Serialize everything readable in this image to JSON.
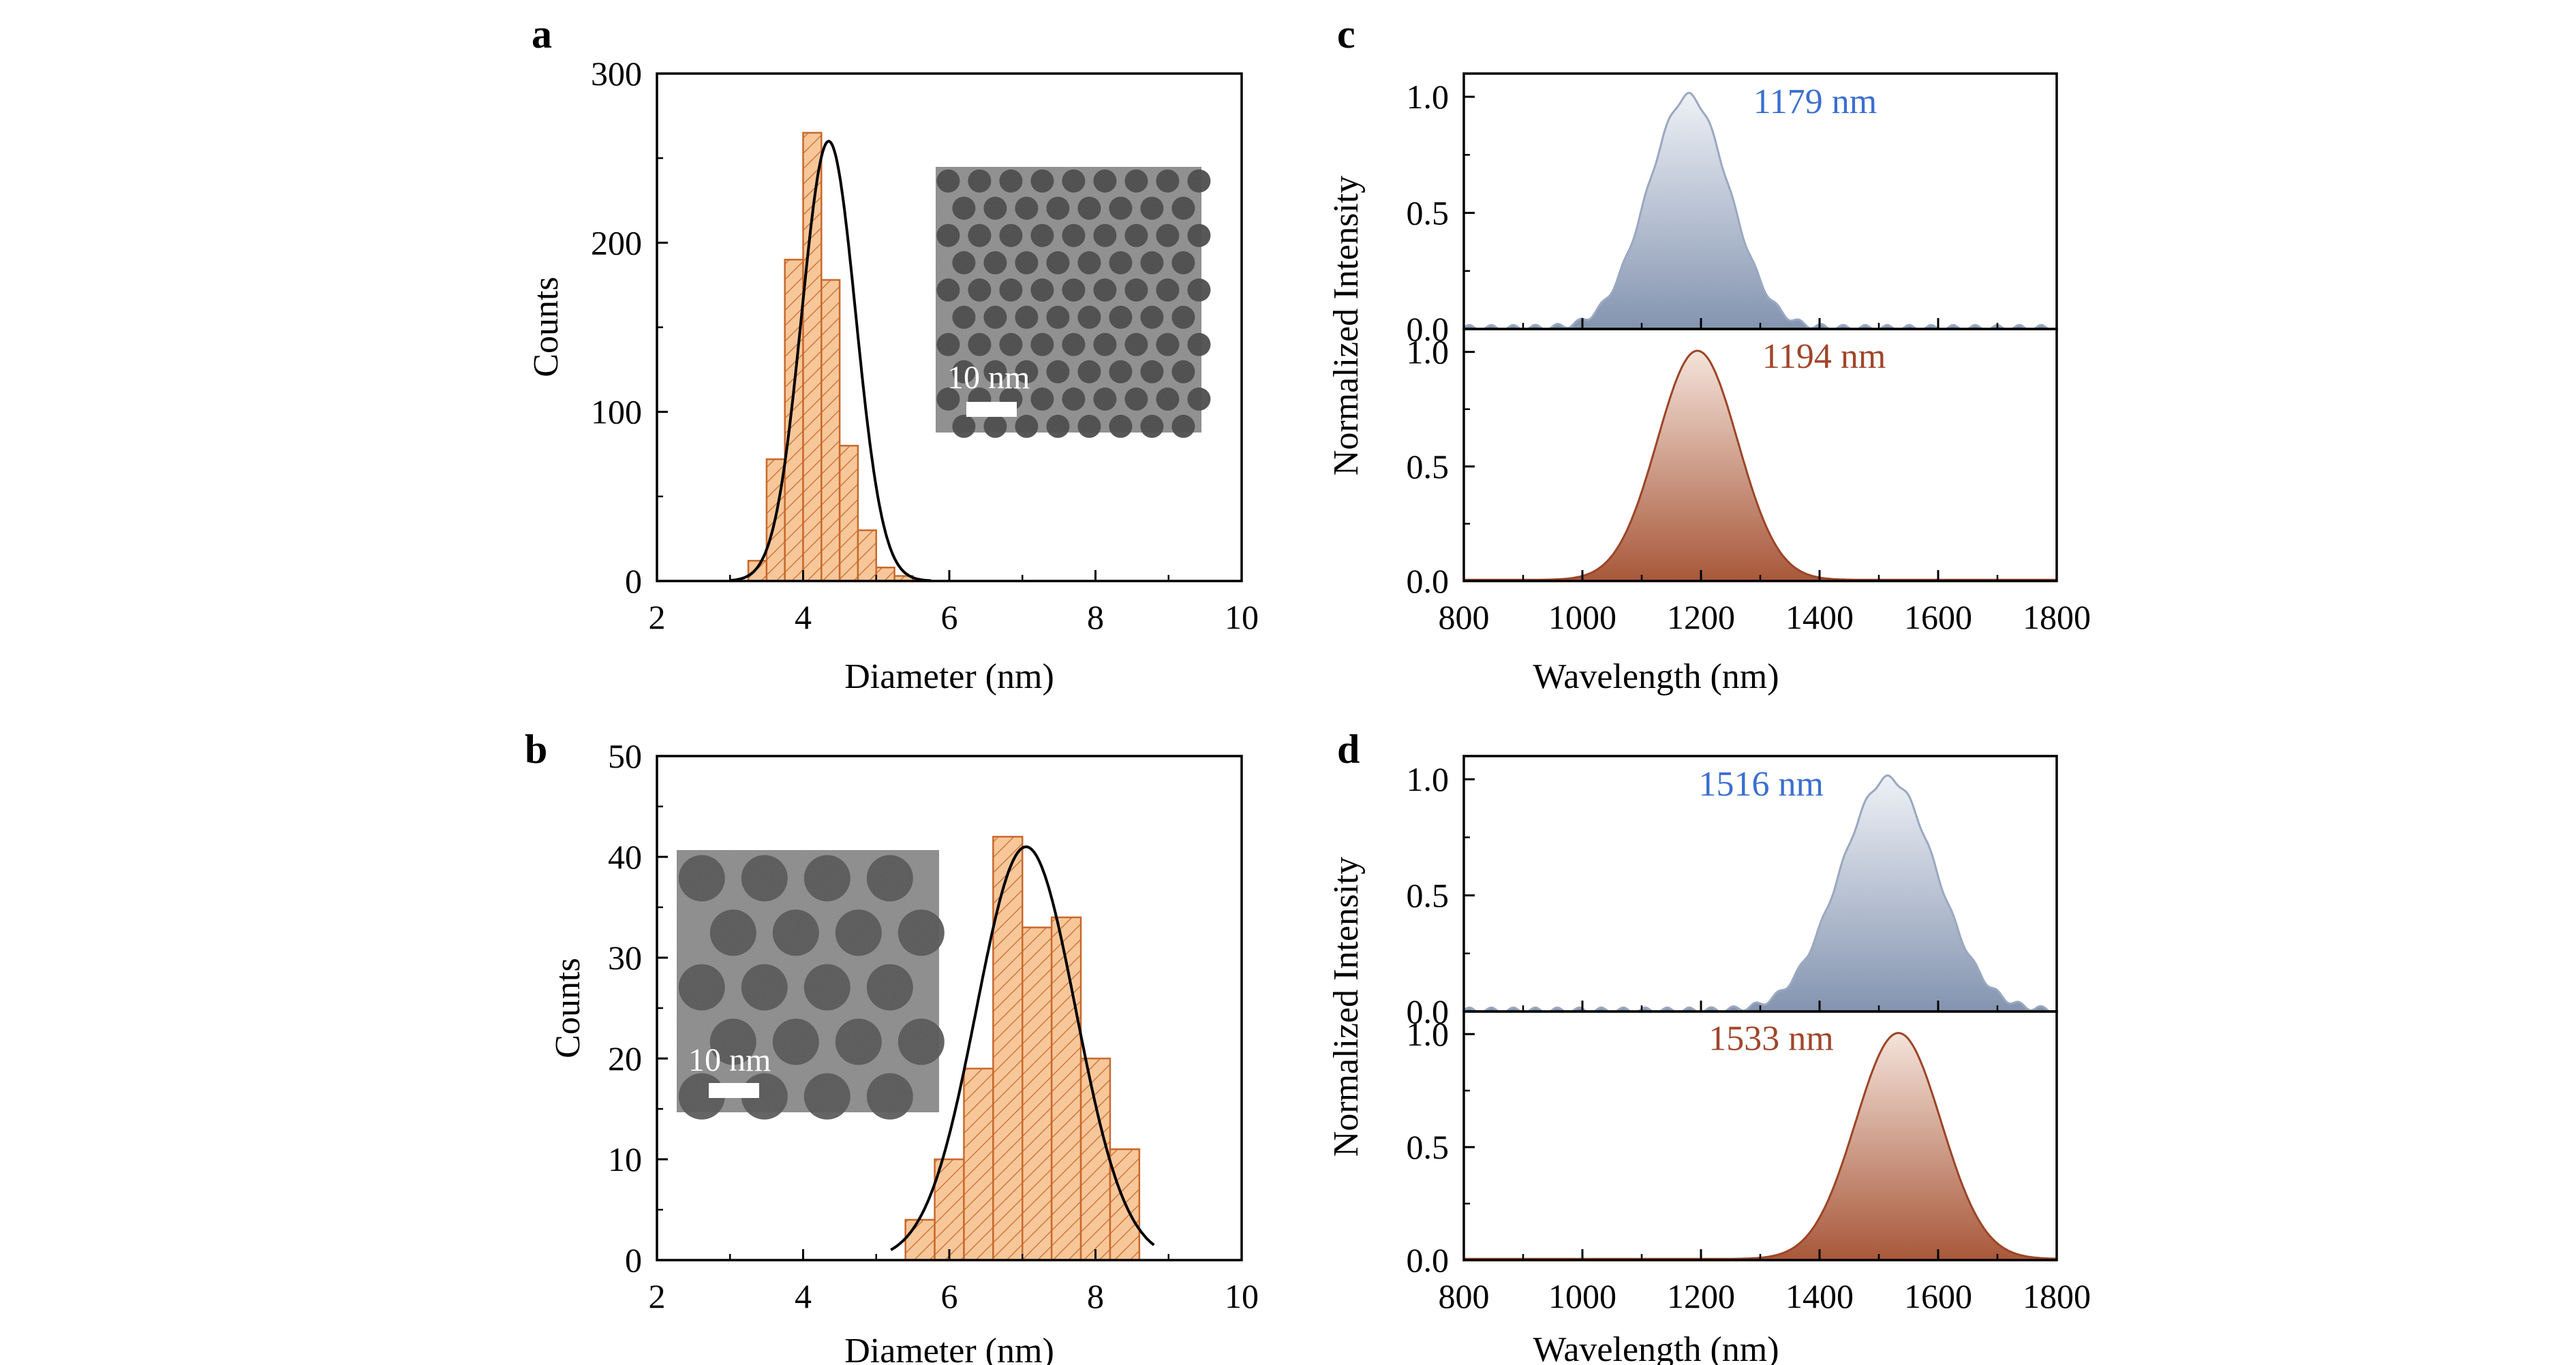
{
  "colors": {
    "hist_fill": "#f7c79a",
    "hist_edge": "#c8692b",
    "fit_line": "#000000",
    "spectrum_blue_line": "#9aa8c0",
    "spectrum_blue_fill_top": "#eef1f6",
    "spectrum_blue_fill_bottom": "#8494b0",
    "spectrum_red_line": "#9c4527",
    "spectrum_red_fill_top": "#f4e3da",
    "spectrum_red_fill_bottom": "#a8583a",
    "label_blue": "#3b6fd0",
    "label_red": "#a0462a"
  },
  "chart_data": [
    {
      "id": "a",
      "panel_label": "a",
      "type": "bar",
      "xlabel": "Diameter (nm)",
      "ylabel": "Counts",
      "xlim": [
        2,
        10
      ],
      "ylim": [
        0,
        300
      ],
      "xticks": [
        "2",
        "4",
        "6",
        "8",
        "10"
      ],
      "yticks": [
        "0",
        "100",
        "200",
        "300"
      ],
      "bin_width": 0.25,
      "bin_centers": [
        3.375,
        3.625,
        3.875,
        4.125,
        4.375,
        4.625,
        4.875,
        5.125,
        5.375
      ],
      "values": [
        12,
        72,
        190,
        265,
        178,
        80,
        30,
        8,
        3
      ],
      "fit": {
        "type": "gaussian",
        "amplitude": 260,
        "mean": 4.35,
        "sigma": 0.37,
        "x_range": [
          3.0,
          5.75
        ]
      },
      "inset": {
        "scale_label": "10 nm",
        "particle_size": "small"
      }
    },
    {
      "id": "b",
      "panel_label": "b",
      "type": "bar",
      "xlabel": "Diameter (nm)",
      "ylabel": "Counts",
      "xlim": [
        2,
        10
      ],
      "ylim": [
        0,
        50
      ],
      "xticks": [
        "2",
        "4",
        "6",
        "8",
        "10"
      ],
      "yticks": [
        "0",
        "10",
        "20",
        "30",
        "40",
        "50"
      ],
      "bin_width": 0.4,
      "bin_centers": [
        5.6,
        6.0,
        6.4,
        6.8,
        7.2,
        7.6,
        8.0,
        8.4
      ],
      "values": [
        4,
        10,
        19,
        42,
        33,
        34,
        20,
        11
      ],
      "fit": {
        "type": "gaussian",
        "amplitude": 41,
        "mean": 7.05,
        "sigma": 0.68,
        "x_range": [
          5.2,
          8.8
        ]
      },
      "inset": {
        "scale_label": "10 nm",
        "particle_size": "large"
      }
    },
    {
      "id": "c",
      "panel_label": "c",
      "type": "area",
      "xlabel": "Wavelength (nm)",
      "ylabel": "Normalized Intensity",
      "xlim": [
        800,
        1800
      ],
      "xticks": [
        "800",
        "1000",
        "1200",
        "1400",
        "1600",
        "1800"
      ],
      "subplots": [
        {
          "ylim": [
            0,
            1.1
          ],
          "yticks": [
            "0.0",
            "0.5",
            "1.0"
          ],
          "peak": 1179,
          "fwhm": 160,
          "peak_label": "1179 nm",
          "color": "blue"
        },
        {
          "ylim": [
            0,
            1.1
          ],
          "yticks": [
            "0.0",
            "0.5",
            "1.0"
          ],
          "peak": 1194,
          "fwhm": 160,
          "peak_label": "1194 nm",
          "color": "red"
        }
      ]
    },
    {
      "id": "d",
      "panel_label": "d",
      "type": "area",
      "xlabel": "Wavelength (nm)",
      "ylabel": "Normalized Intensity",
      "xlim": [
        800,
        1800
      ],
      "xticks": [
        "800",
        "1000",
        "1200",
        "1400",
        "1600",
        "1800"
      ],
      "subplots": [
        {
          "ylim": [
            0,
            1.1
          ],
          "yticks": [
            "0.0",
            "0.5",
            "1.0"
          ],
          "peak": 1516,
          "fwhm": 190,
          "peak_label": "1516 nm",
          "color": "blue"
        },
        {
          "ylim": [
            0,
            1.1
          ],
          "yticks": [
            "0.0",
            "0.5",
            "1.0"
          ],
          "peak": 1533,
          "fwhm": 170,
          "peak_label": "1533 nm",
          "color": "red"
        }
      ]
    }
  ]
}
